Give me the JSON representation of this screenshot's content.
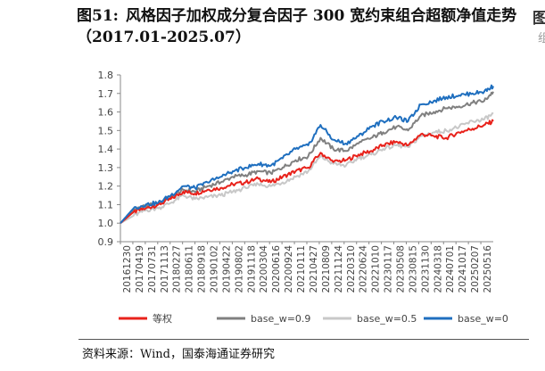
{
  "figure": {
    "number": "图51:",
    "title": "风格因子加权成分复合因子 300 宽约束组合超额净值走势（2017.01-2025.07）",
    "source": "资料来源：Wind，国泰海通证券研究"
  },
  "chart_data": {
    "type": "line",
    "ylim": [
      0.9,
      1.8
    ],
    "yticks": [
      0.9,
      1.0,
      1.1,
      1.2,
      1.3,
      1.4,
      1.5,
      1.6,
      1.7,
      1.8
    ],
    "xtick_labels": [
      "20161230",
      "20170419",
      "20170731",
      "20171113",
      "20180227",
      "20180611",
      "20180918",
      "20190102",
      "20190422",
      "20190802",
      "20191118",
      "20200304",
      "20200616",
      "20200924",
      "20210111",
      "20210427",
      "20210809",
      "20211124",
      "20220310",
      "20220624",
      "20221010",
      "20230117",
      "20230508",
      "20230815",
      "20231130",
      "20240318",
      "20240701",
      "20241017",
      "20250207",
      "20250516"
    ],
    "grid": false,
    "legend_position": "bottom",
    "x": [
      "2016-12-30",
      "2017-04-19",
      "2017-07-31",
      "2017-11-13",
      "2018-02-27",
      "2018-06-11",
      "2018-09-18",
      "2019-01-02",
      "2019-04-22",
      "2019-08-02",
      "2019-11-18",
      "2020-03-04",
      "2020-06-16",
      "2020-09-24",
      "2021-01-11",
      "2021-04-27",
      "2021-08-09",
      "2021-11-24",
      "2022-03-10",
      "2022-06-24",
      "2022-10-10",
      "2023-01-17",
      "2023-05-08",
      "2023-08-15",
      "2023-11-30",
      "2024-03-18",
      "2024-07-01",
      "2024-10-17",
      "2025-02-07",
      "2025-05-16",
      "2025-07-31"
    ],
    "series": [
      {
        "name": "等权",
        "color": "#e8221b",
        "values": [
          1.0,
          1.06,
          1.08,
          1.1,
          1.13,
          1.17,
          1.16,
          1.18,
          1.19,
          1.21,
          1.22,
          1.24,
          1.22,
          1.25,
          1.28,
          1.3,
          1.38,
          1.33,
          1.34,
          1.37,
          1.39,
          1.42,
          1.44,
          1.42,
          1.48,
          1.47,
          1.46,
          1.49,
          1.51,
          1.53,
          1.55
        ]
      },
      {
        "name": "base_w=0.9",
        "color": "#808080",
        "values": [
          1.0,
          1.07,
          1.09,
          1.11,
          1.14,
          1.18,
          1.17,
          1.2,
          1.22,
          1.25,
          1.26,
          1.28,
          1.27,
          1.3,
          1.34,
          1.36,
          1.46,
          1.4,
          1.39,
          1.43,
          1.46,
          1.49,
          1.52,
          1.5,
          1.58,
          1.6,
          1.62,
          1.63,
          1.65,
          1.66,
          1.71
        ]
      },
      {
        "name": "base_w=0.5",
        "color": "#c8c8c8",
        "values": [
          1.0,
          1.04,
          1.07,
          1.08,
          1.11,
          1.15,
          1.13,
          1.14,
          1.15,
          1.17,
          1.19,
          1.21,
          1.2,
          1.22,
          1.25,
          1.28,
          1.36,
          1.32,
          1.31,
          1.35,
          1.37,
          1.4,
          1.42,
          1.41,
          1.47,
          1.49,
          1.5,
          1.52,
          1.55,
          1.56,
          1.59
        ]
      },
      {
        "name": "base_w=0",
        "color": "#1f6fbf",
        "values": [
          1.0,
          1.08,
          1.1,
          1.11,
          1.15,
          1.2,
          1.19,
          1.22,
          1.25,
          1.28,
          1.3,
          1.32,
          1.31,
          1.35,
          1.4,
          1.42,
          1.53,
          1.45,
          1.43,
          1.47,
          1.52,
          1.55,
          1.57,
          1.55,
          1.64,
          1.66,
          1.68,
          1.69,
          1.7,
          1.71,
          1.74
        ]
      }
    ]
  }
}
